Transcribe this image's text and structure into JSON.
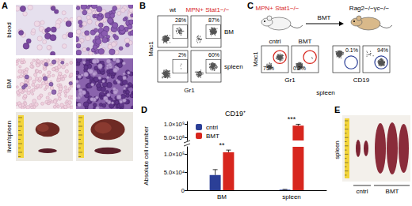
{
  "panel_labels": [
    "A",
    "B",
    "C",
    "D",
    "E"
  ],
  "panel_a": {
    "rows": [
      "blood",
      "BM",
      "liver/spleen"
    ]
  },
  "panel_b": {
    "columns": [
      {
        "text": "wt",
        "color": "#000000"
      },
      {
        "text": "MPN+ Stat1−/−",
        "color": "#d7261e"
      }
    ],
    "rows": [
      "BM",
      "spleen"
    ],
    "x_label": "Gr1",
    "y_label": "Mac1",
    "percents": [
      [
        "28%",
        "87%"
      ],
      [
        "2%",
        "60%"
      ]
    ]
  },
  "panel_c": {
    "donor": {
      "text": "MPN+ Stat1−/−",
      "color": "#d7261e"
    },
    "transfer": "BMT",
    "recipient": "Rag2−/−γc−/−",
    "plots": [
      {
        "title": "cntrl",
        "percent": "75%",
        "gate_color": "#d7261e"
      },
      {
        "title": "BMT",
        "percent": "0.2%",
        "gate_color": "#d7261e"
      },
      {
        "percent": "0.1%",
        "gate_color": "#2b3f97"
      },
      {
        "percent": "94%",
        "gate_color": "#2b3f97"
      }
    ],
    "y_label": "Mac1",
    "x_labels": [
      "Gr1",
      "CD19"
    ],
    "tissue": "spleen"
  },
  "chart_data": {
    "type": "bar",
    "title": "CD19⁺",
    "y_label": "Absolute cell number",
    "categories": [
      "BM",
      "spleen"
    ],
    "series": [
      {
        "name": "cntrl",
        "color": "#2b3f97",
        "values": [
          42000,
          1500
        ],
        "errors": [
          15000,
          800
        ]
      },
      {
        "name": "BMT",
        "color": "#d7261e",
        "values": [
          105000,
          950000000
        ],
        "errors": [
          6000,
          50000000
        ]
      }
    ],
    "ylim": [
      [
        0,
        120000
      ],
      [
        400000000,
        1100000000
      ]
    ],
    "yticks": [
      [
        0,
        {
          "value": 50000,
          "label": "5.0×10⁴"
        },
        {
          "value": 100000,
          "label": "1.0×10⁵"
        }
      ],
      [
        {
          "value": 500000000,
          "label": "5.0×10⁸"
        },
        {
          "value": 1000000000,
          "label": "1.0×10⁹"
        }
      ]
    ],
    "annotations": [
      "**",
      "***"
    ],
    "legend": "upper left",
    "grid": false
  },
  "panel_e": {
    "groups": [
      "cntrl",
      "BMT"
    ],
    "tissue": "spleen"
  }
}
